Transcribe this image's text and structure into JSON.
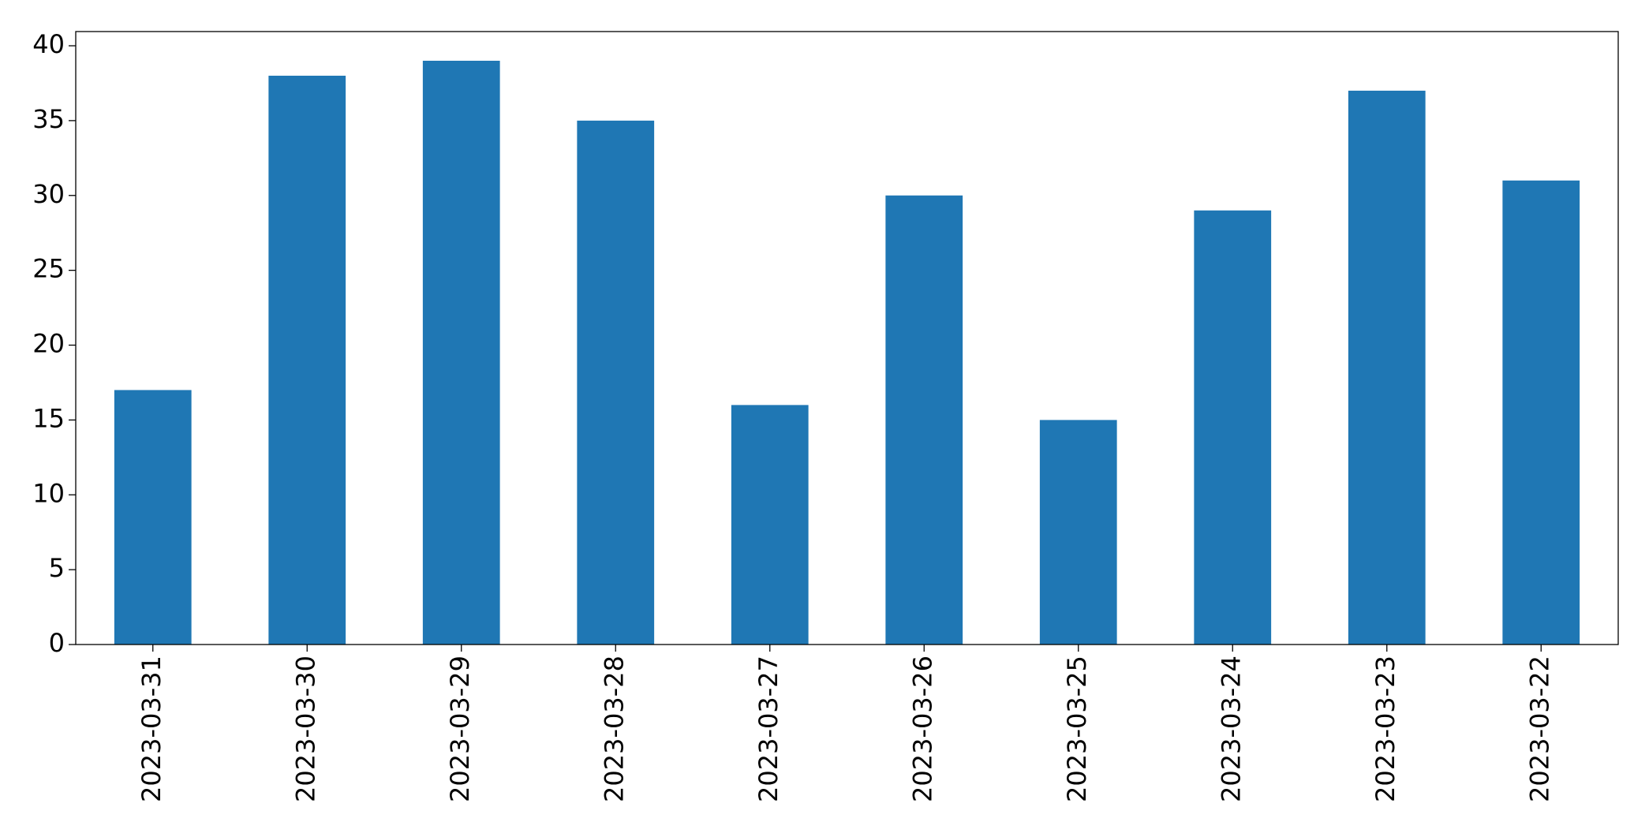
{
  "chart_data": {
    "type": "bar",
    "categories": [
      "2023-03-31",
      "2023-03-30",
      "2023-03-29",
      "2023-03-28",
      "2023-03-27",
      "2023-03-26",
      "2023-03-25",
      "2023-03-24",
      "2023-03-23",
      "2023-03-22"
    ],
    "values": [
      17,
      38,
      39,
      35,
      16,
      30,
      15,
      29,
      37,
      31
    ],
    "color": "#1f77b4",
    "ylim": [
      0,
      40.95
    ],
    "yticks": [
      0,
      5,
      10,
      15,
      20,
      25,
      30,
      35,
      40
    ],
    "grid": false
  }
}
